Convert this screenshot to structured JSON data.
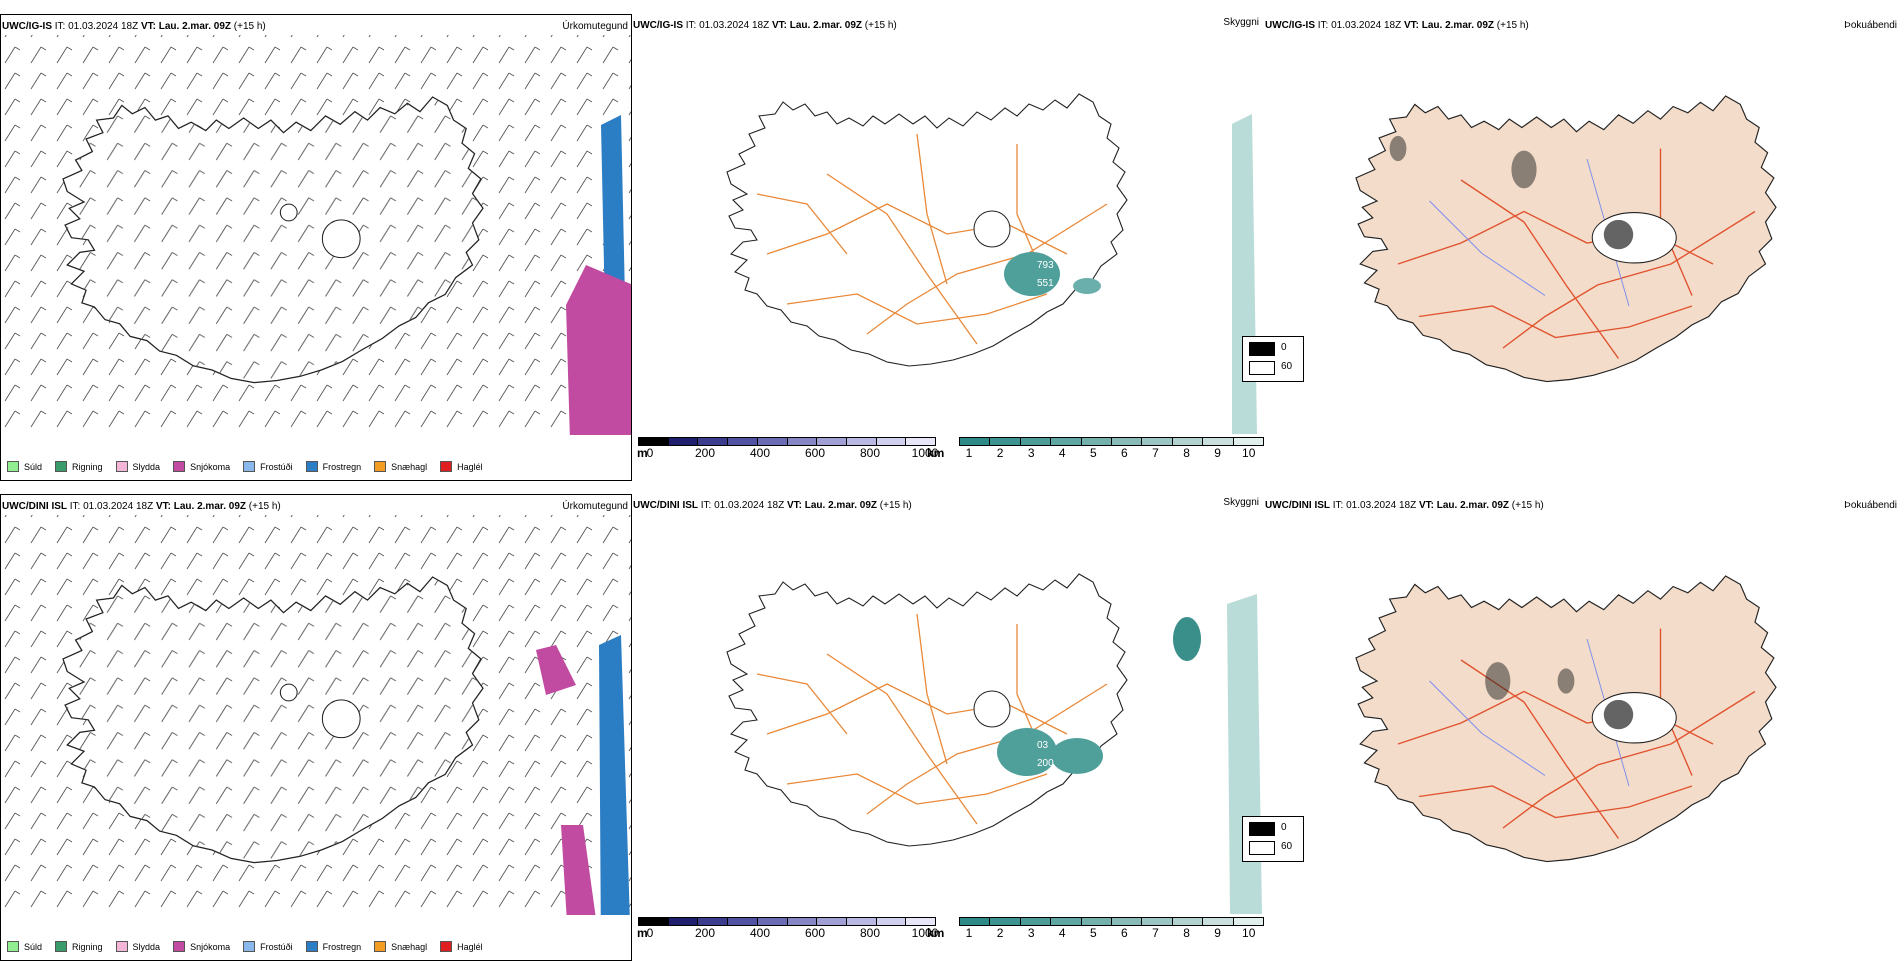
{
  "rows": [
    {
      "model": "UWC/IG-IS",
      "it_label": "IT:",
      "it": "01.03.2024 18Z",
      "vt_label": "VT:",
      "vt": "Lau. 2.mar. 09Z",
      "lead": "(+15 h)",
      "precip_title": "Úrkomutegund",
      "cloud_title": "Skyggni",
      "fog_title": "Þokuábendi",
      "labels": [
        "793",
        "551"
      ]
    },
    {
      "model": "UWC/DINI ISL",
      "it_label": "IT:",
      "it": "01.03.2024 18Z",
      "vt_label": "VT:",
      "vt": "Lau. 2.mar. 09Z",
      "lead": "(+15 h)",
      "precip_title": "Úrkomutegund",
      "cloud_title": "Skyggni",
      "fog_title": "Þokuábendi",
      "labels": [
        "03",
        "200"
      ]
    }
  ],
  "precip_legend": [
    {
      "label": "Súld",
      "color": "#90ee90"
    },
    {
      "label": "Rigning",
      "color": "#3a9a6a"
    },
    {
      "label": "Slydda",
      "color": "#f4b6d8"
    },
    {
      "label": "Snjókoma",
      "color": "#c04ba0"
    },
    {
      "label": "Frostúði",
      "color": "#8ab8ec"
    },
    {
      "label": "Frostregn",
      "color": "#2b7dc4"
    },
    {
      "label": "Snæhagl",
      "color": "#f39c1f"
    },
    {
      "label": "Haglél",
      "color": "#e02020"
    }
  ],
  "height_bar": {
    "unit": "m",
    "ticks": [
      "0",
      "200",
      "400",
      "600",
      "800",
      "1000"
    ],
    "colors": [
      "#000000",
      "#1f1f6e",
      "#3c3c8e",
      "#5252a2",
      "#6c6cb4",
      "#8686c4",
      "#a0a0d4",
      "#b8b8e2",
      "#d0d0ee",
      "#e6e6f8"
    ]
  },
  "vis_bar": {
    "unit": "km",
    "ticks": [
      "1",
      "2",
      "3",
      "4",
      "5",
      "6",
      "7",
      "8",
      "9",
      "10"
    ],
    "colors": [
      "#2e8a87",
      "#3c938f",
      "#4d9c98",
      "#60a6a2",
      "#74b0ac",
      "#88bbb8",
      "#9cc6c3",
      "#b2d2cf",
      "#c8dfdd",
      "#e0eeec"
    ]
  },
  "fog_legend": [
    {
      "label": "0",
      "color": "#000000"
    },
    {
      "label": "60",
      "color": "#ffffff"
    }
  ]
}
